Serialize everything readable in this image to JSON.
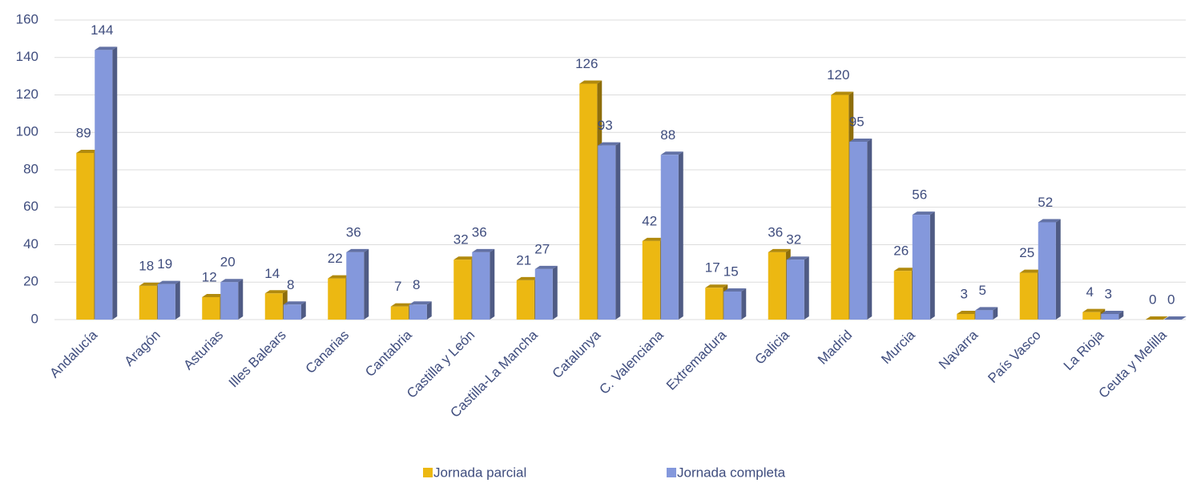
{
  "chart_data": {
    "type": "bar",
    "categories": [
      "Andalucía",
      "Aragón",
      "Asturias",
      "Illes Balears",
      "Canarias",
      "Cantabria",
      "Castilla y León",
      "Castilla-La Mancha",
      "Catalunya",
      "C. Valenciana",
      "Extremadura",
      "Galicia",
      "Madrid",
      "Murcia",
      "Navarra",
      "País Vasco",
      "La Rioja",
      "Ceuta  y Melilla"
    ],
    "series": [
      {
        "name": "Jornada parcial",
        "color": "#ecb812",
        "values": [
          89,
          18,
          12,
          14,
          22,
          7,
          32,
          21,
          126,
          42,
          17,
          36,
          120,
          26,
          3,
          25,
          4,
          0
        ]
      },
      {
        "name": "Jornada completa",
        "color": "#8498dc",
        "values": [
          144,
          19,
          20,
          8,
          36,
          8,
          36,
          27,
          93,
          88,
          15,
          32,
          95,
          56,
          5,
          52,
          3,
          0
        ]
      }
    ],
    "ylim": [
      0,
      160
    ],
    "yticks": [
      0,
      20,
      40,
      60,
      80,
      100,
      120,
      140,
      160
    ],
    "grid": true,
    "legend": "bottom"
  }
}
